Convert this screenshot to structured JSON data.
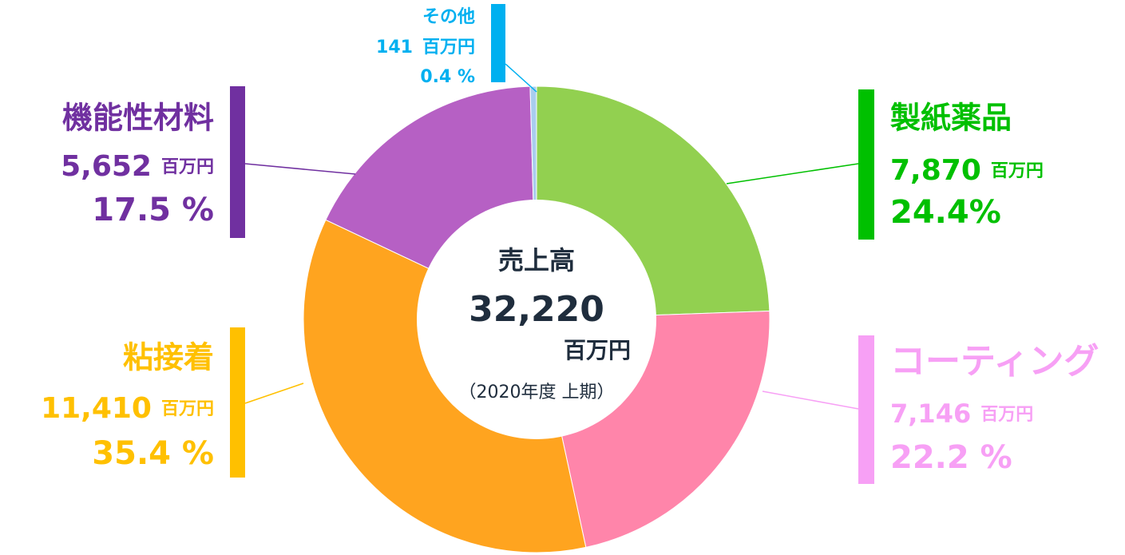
{
  "chart_data": {
    "type": "donut",
    "center_title": "売上高",
    "total": {
      "value": 32220,
      "label": "32,220"
    },
    "unit": "百万円",
    "period": "（2020年度 上期）",
    "categories": [
      "製紙薬品",
      "コーティング",
      "粘接着",
      "機能性材料",
      "その他"
    ],
    "values": [
      7870,
      7146,
      11410,
      5652,
      141
    ],
    "value_labels": [
      "7,870",
      "7,146",
      "11,410",
      "5,652",
      "141"
    ],
    "percent_labels": [
      "24.4%",
      "22.2 %",
      "35.4 %",
      "17.5 %",
      "0.4 %"
    ],
    "colors": [
      "#92d050",
      "#ff85aa",
      "#ffa41f",
      "#b660c4",
      "#a9cdee"
    ],
    "label_colors": [
      "#00c000",
      "#f7a0f5",
      "#ffc000",
      "#7030a0",
      "#00b0f0"
    ]
  }
}
